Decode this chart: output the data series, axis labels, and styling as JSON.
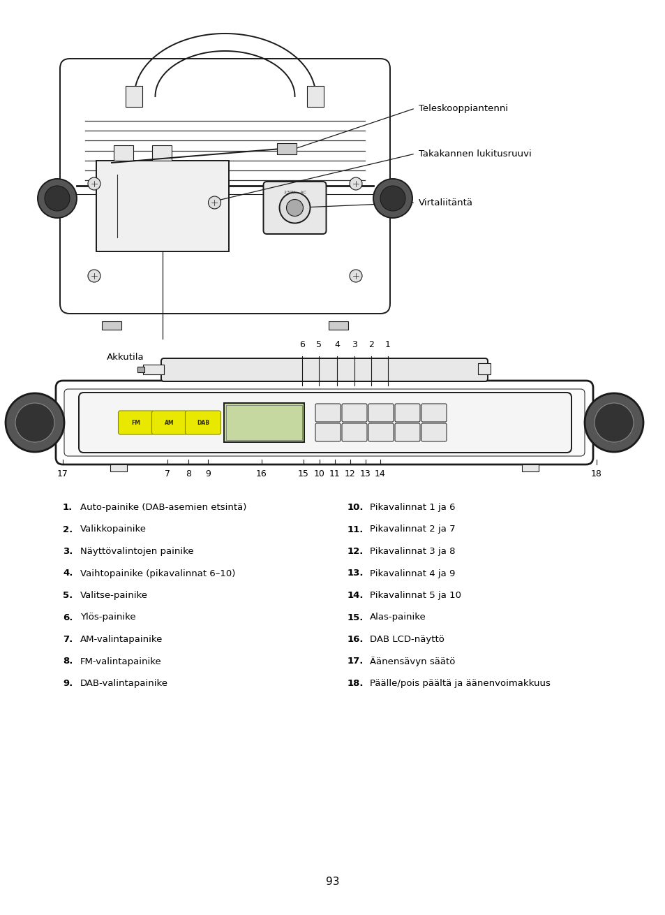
{
  "page_number": "93",
  "background_color": "#ffffff",
  "text_color": "#000000",
  "left_items": [
    [
      "1.",
      "Auto-painike (DAB-asemien etsintä)"
    ],
    [
      "2.",
      "Valikkopainike"
    ],
    [
      "3.",
      "Näyttövalintojen painike"
    ],
    [
      "4.",
      "Vaihtopainike (pikavalinnat 6–10)"
    ],
    [
      "5.",
      "Valitse-painike"
    ],
    [
      "6.",
      "Ylös-painike"
    ],
    [
      "7.",
      "AM-valintapainike"
    ],
    [
      "8.",
      "FM-valintapainike"
    ],
    [
      "9.",
      "DAB-valintapainike"
    ]
  ],
  "right_items": [
    [
      "10.",
      "Pikavalinnat 1 ja 6"
    ],
    [
      "11.",
      "Pikavalinnat 2 ja 7"
    ],
    [
      "12.",
      "Pikavalinnat 3 ja 8"
    ],
    [
      "13.",
      "Pikavalinnat 4 ja 9"
    ],
    [
      "14.",
      "Pikavalinnat 5 ja 10"
    ],
    [
      "15.",
      "Alas-painike"
    ],
    [
      "16.",
      "DAB LCD-näyttö"
    ],
    [
      "17.",
      "Äänensävyn säätö"
    ],
    [
      "18.",
      "Päälle/pois päältä ja äänenvoimakkuus"
    ]
  ],
  "d1_label_Teleskooppiantenni": "Teleskooppiantenni",
  "d1_label_Takakannen": "Takakannen lukitusruuvi",
  "d1_label_Virtaliitanta": "Virtaliitäntä",
  "d1_label_Akkutila": "Akkutila"
}
